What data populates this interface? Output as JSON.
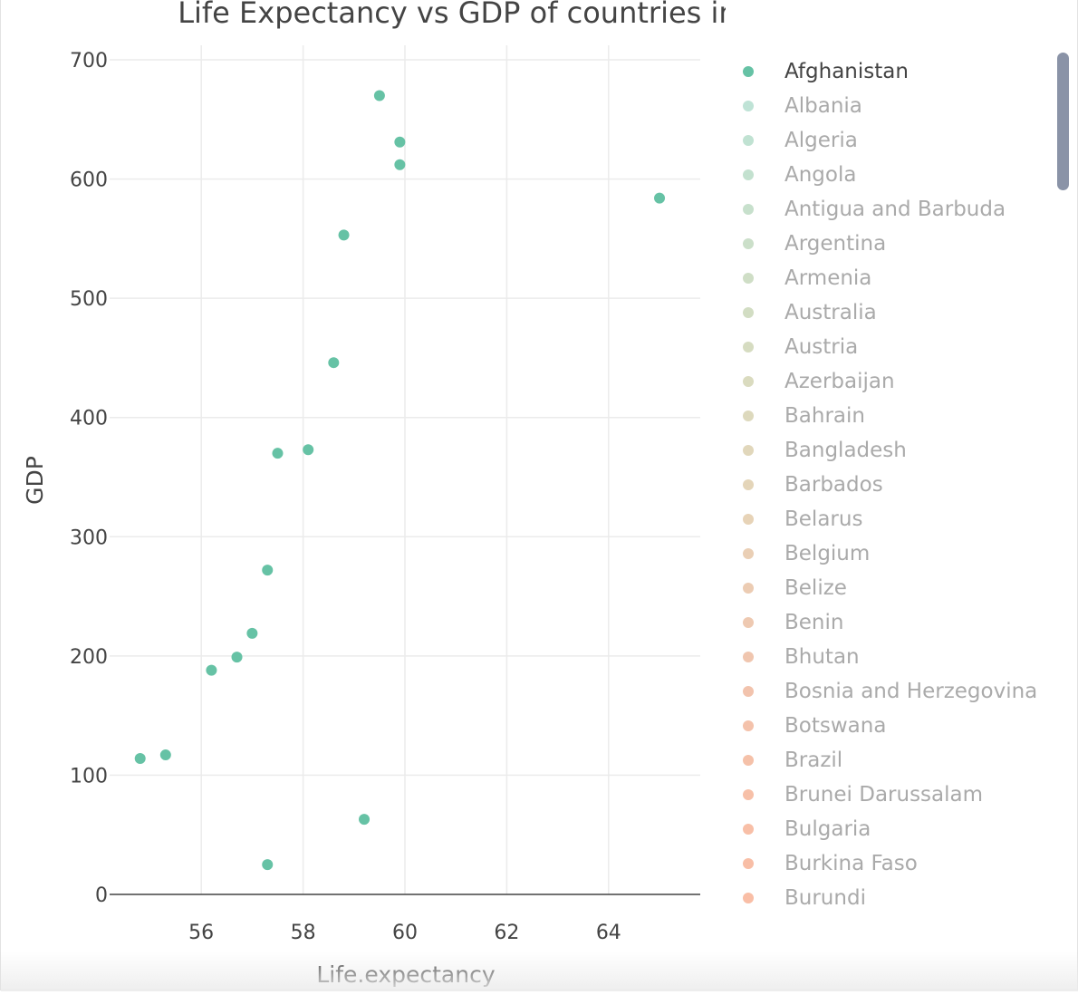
{
  "chart_data": {
    "type": "scatter",
    "title": "Life Expectancy vs GDP of countries in every year",
    "xlabel": "Life.expectancy",
    "ylabel": "GDP",
    "xlim": [
      54.2,
      65.8
    ],
    "ylim": [
      0,
      700
    ],
    "x_ticks": [
      "56",
      "58",
      "60",
      "62",
      "64"
    ],
    "y_ticks": [
      "0",
      "100",
      "200",
      "300",
      "400",
      "500",
      "600",
      "700"
    ],
    "grid": true,
    "legend_position": "right",
    "series": [
      {
        "name": "Afghanistan",
        "color": "#66c2a5",
        "points": [
          {
            "x": 59.5,
            "y": 670
          },
          {
            "x": 59.9,
            "y": 631
          },
          {
            "x": 59.9,
            "y": 612
          },
          {
            "x": 65.0,
            "y": 584
          },
          {
            "x": 58.8,
            "y": 553
          },
          {
            "x": 58.6,
            "y": 446
          },
          {
            "x": 58.1,
            "y": 373
          },
          {
            "x": 57.5,
            "y": 370
          },
          {
            "x": 57.3,
            "y": 272
          },
          {
            "x": 57.0,
            "y": 219
          },
          {
            "x": 56.7,
            "y": 199
          },
          {
            "x": 56.2,
            "y": 188
          },
          {
            "x": 55.3,
            "y": 117
          },
          {
            "x": 54.8,
            "y": 114
          },
          {
            "x": 59.2,
            "y": 63
          },
          {
            "x": 57.3,
            "y": 25
          }
        ]
      }
    ]
  },
  "legend": {
    "items": [
      {
        "label": "Afghanistan",
        "color": "#66c2a5",
        "active": true
      },
      {
        "label": "Albania",
        "color": "#bfe3d6",
        "active": false
      },
      {
        "label": "Algeria",
        "color": "#c0e2d2",
        "active": false
      },
      {
        "label": "Angola",
        "color": "#c3e1cf",
        "active": false
      },
      {
        "label": "Antigua and Barbuda",
        "color": "#c7e0cc",
        "active": false
      },
      {
        "label": "Argentina",
        "color": "#cbdfc9",
        "active": false
      },
      {
        "label": "Armenia",
        "color": "#cfdec6",
        "active": false
      },
      {
        "label": "Australia",
        "color": "#d2ddc3",
        "active": false
      },
      {
        "label": "Austria",
        "color": "#d6dcc1",
        "active": false
      },
      {
        "label": "Azerbaijan",
        "color": "#dadbbf",
        "active": false
      },
      {
        "label": "Bahrain",
        "color": "#ddd9bd",
        "active": false
      },
      {
        "label": "Bangladesh",
        "color": "#e1d7bb",
        "active": false
      },
      {
        "label": "Barbados",
        "color": "#e4d5b9",
        "active": false
      },
      {
        "label": "Belarus",
        "color": "#e7d3b7",
        "active": false
      },
      {
        "label": "Belgium",
        "color": "#eacfb5",
        "active": false
      },
      {
        "label": "Belize",
        "color": "#ecccb3",
        "active": false
      },
      {
        "label": "Benin",
        "color": "#eec9b1",
        "active": false
      },
      {
        "label": "Bhutan",
        "color": "#f0c6af",
        "active": false
      },
      {
        "label": "Bosnia and Herzegovina",
        "color": "#f2c3ad",
        "active": false
      },
      {
        "label": "Botswana",
        "color": "#f4c2ab",
        "active": false
      },
      {
        "label": "Brazil",
        "color": "#f5c1a9",
        "active": false
      },
      {
        "label": "Brunei Darussalam",
        "color": "#f7c0a8",
        "active": false
      },
      {
        "label": "Bulgaria",
        "color": "#f8bfa7",
        "active": false
      },
      {
        "label": "Burkina Faso",
        "color": "#f8bea6",
        "active": false
      },
      {
        "label": "Burundi",
        "color": "#f9bea6",
        "active": false
      }
    ]
  }
}
